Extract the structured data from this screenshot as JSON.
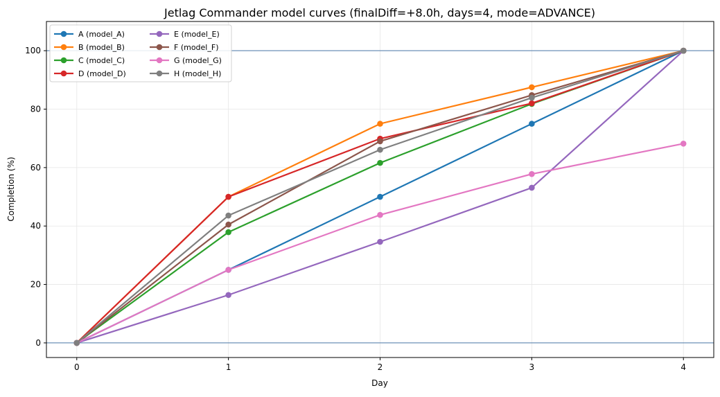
{
  "chart_data": {
    "type": "line",
    "title": "Jetlag Commander model curves (finalDiff=+8.0h, days=4, mode=ADVANCE)",
    "xlabel": "Day",
    "ylabel": "Completion (%)",
    "x": [
      0,
      1,
      2,
      3,
      4
    ],
    "xticks": [
      "0",
      "1",
      "2",
      "3",
      "4"
    ],
    "yticks": [
      "0",
      "20",
      "40",
      "60",
      "80",
      "100"
    ],
    "xlim": [
      -0.2,
      4.2
    ],
    "ylim": [
      -5,
      110
    ],
    "grid": true,
    "reference_lines": [
      0,
      100
    ],
    "reference_line_color": "#4a78a8",
    "legend_placement": "upper-left",
    "series": [
      {
        "name": "A (model_A)",
        "color": "#1f77b4",
        "values": [
          0,
          25,
          50,
          75,
          100
        ]
      },
      {
        "name": "B (model_B)",
        "color": "#ff7f0e",
        "values": [
          0,
          50,
          75,
          87.5,
          100
        ]
      },
      {
        "name": "C (model_C)",
        "color": "#2ca02c",
        "values": [
          0,
          37.9,
          61.6,
          81.8,
          100
        ]
      },
      {
        "name": "D (model_D)",
        "color": "#d62728",
        "values": [
          0,
          50,
          69.9,
          82,
          100
        ]
      },
      {
        "name": "E (model_E)",
        "color": "#9467bd",
        "values": [
          0,
          16.4,
          34.6,
          53.1,
          100
        ]
      },
      {
        "name": "F (model_F)",
        "color": "#8c564b",
        "values": [
          0,
          40.5,
          69,
          84.8,
          100
        ]
      },
      {
        "name": "G (model_G)",
        "color": "#e377c2",
        "values": [
          0,
          25,
          43.8,
          57.8,
          68.2
        ]
      },
      {
        "name": "H (model_H)",
        "color": "#7f7f7f",
        "values": [
          0,
          43.6,
          66.1,
          83.9,
          100
        ]
      }
    ]
  }
}
